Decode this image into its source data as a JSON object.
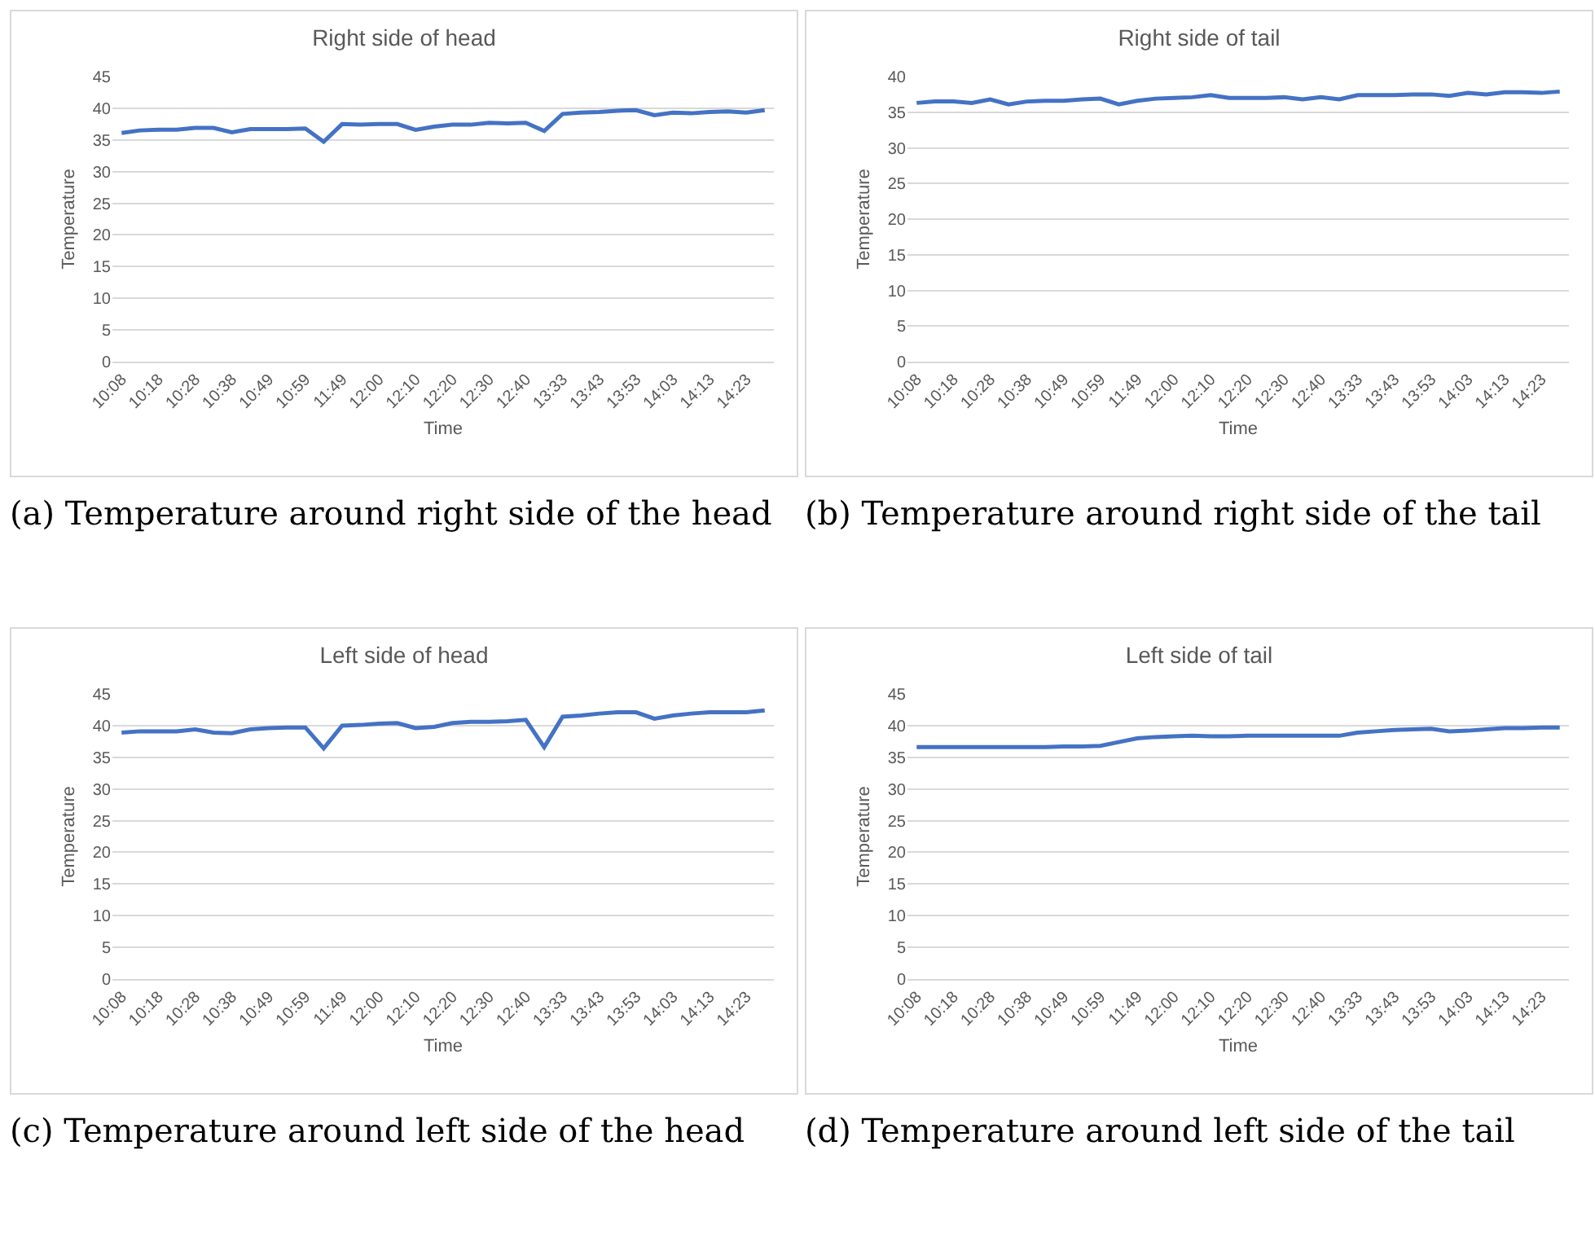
{
  "chart_data": [
    {
      "type": "line",
      "title": "Right side of head",
      "xlabel": "Time",
      "ylabel": "Temperature",
      "categories": [
        "10:08",
        null,
        "10:18",
        null,
        "10:28",
        null,
        "10:38",
        null,
        "10:49",
        null,
        "10:59",
        null,
        "11:49",
        null,
        "12:00",
        null,
        "12:10",
        null,
        "12:20",
        null,
        "12:30",
        null,
        "12:40",
        null,
        "13:33",
        null,
        "13:43",
        null,
        "13:53",
        null,
        "14:03",
        null,
        "14:13",
        null,
        "14:23",
        null
      ],
      "series": [
        {
          "color": "#4472c4",
          "values": [
            36.1,
            36.5,
            36.6,
            36.6,
            36.9,
            36.9,
            36.2,
            36.7,
            36.7,
            36.7,
            36.8,
            34.7,
            37.5,
            37.4,
            37.5,
            37.5,
            36.6,
            37.1,
            37.4,
            37.4,
            37.7,
            37.6,
            37.7,
            36.4,
            39.1,
            39.3,
            39.4,
            39.6,
            39.7,
            38.9,
            39.3,
            39.2,
            39.4,
            39.5,
            39.3,
            39.7
          ]
        }
      ],
      "ylim": [
        0,
        45
      ],
      "yticks": [
        0,
        5,
        10,
        15,
        20,
        25,
        30,
        35,
        40,
        45
      ],
      "grid": "y",
      "marker": "none",
      "line_style": "solid",
      "annotations": [
        "(a) Temperature around right side of the head"
      ]
    },
    {
      "type": "line",
      "title": "Right side of tail",
      "xlabel": "Time",
      "ylabel": "Temperature",
      "categories": [
        "10:08",
        null,
        "10:18",
        null,
        "10:28",
        null,
        "10:38",
        null,
        "10:49",
        null,
        "10:59",
        null,
        "11:49",
        null,
        "12:00",
        null,
        "12:10",
        null,
        "12:20",
        null,
        "12:30",
        null,
        "12:40",
        null,
        "13:33",
        null,
        "13:43",
        null,
        "13:53",
        null,
        "14:03",
        null,
        "14:13",
        null,
        "14:23",
        null
      ],
      "series": [
        {
          "color": "#4472c4",
          "values": [
            36.3,
            36.5,
            36.5,
            36.3,
            36.8,
            36.1,
            36.5,
            36.6,
            36.6,
            36.8,
            36.9,
            36.1,
            36.6,
            36.9,
            37.0,
            37.1,
            37.4,
            37.0,
            37.0,
            37.0,
            37.1,
            36.8,
            37.1,
            36.8,
            37.4,
            37.4,
            37.4,
            37.5,
            37.5,
            37.3,
            37.7,
            37.5,
            37.8,
            37.8,
            37.7,
            37.9
          ]
        }
      ],
      "ylim": [
        0,
        40
      ],
      "yticks": [
        0,
        5,
        10,
        15,
        20,
        25,
        30,
        35,
        40
      ],
      "grid": "y",
      "marker": "none",
      "line_style": "solid",
      "annotations": [
        "(b) Temperature around right side of the tail"
      ]
    },
    {
      "type": "line",
      "title": "Left side of head",
      "xlabel": "Time",
      "ylabel": "Temperature",
      "categories": [
        "10:08",
        null,
        "10:18",
        null,
        "10:28",
        null,
        "10:38",
        null,
        "10:49",
        null,
        "10:59",
        null,
        "11:49",
        null,
        "12:00",
        null,
        "12:10",
        null,
        "12:20",
        null,
        "12:30",
        null,
        "12:40",
        null,
        "13:33",
        null,
        "13:43",
        null,
        "13:53",
        null,
        "14:03",
        null,
        "14:13",
        null,
        "14:23",
        null
      ],
      "series": [
        {
          "color": "#4472c4",
          "values": [
            38.9,
            39.1,
            39.1,
            39.1,
            39.4,
            38.9,
            38.8,
            39.4,
            39.6,
            39.7,
            39.7,
            36.4,
            40.0,
            40.1,
            40.3,
            40.4,
            39.6,
            39.8,
            40.4,
            40.6,
            40.6,
            40.7,
            40.9,
            36.6,
            41.4,
            41.6,
            41.9,
            42.1,
            42.1,
            41.1,
            41.6,
            41.9,
            42.1,
            42.1,
            42.1,
            42.4
          ]
        }
      ],
      "ylim": [
        0,
        45
      ],
      "yticks": [
        0,
        5,
        10,
        15,
        20,
        25,
        30,
        35,
        40,
        45
      ],
      "grid": "y",
      "marker": "none",
      "line_style": "solid",
      "annotations": [
        "(c) Temperature around left side of the head"
      ]
    },
    {
      "type": "line",
      "title": "Left side of tail",
      "xlabel": "Time",
      "ylabel": "Temperature",
      "categories": [
        "10:08",
        null,
        "10:18",
        null,
        "10:28",
        null,
        "10:38",
        null,
        "10:49",
        null,
        "10:59",
        null,
        "11:49",
        null,
        "12:00",
        null,
        "12:10",
        null,
        "12:20",
        null,
        "12:30",
        null,
        "12:40",
        null,
        "13:33",
        null,
        "13:43",
        null,
        "13:53",
        null,
        "14:03",
        null,
        "14:13",
        null,
        "14:23",
        null
      ],
      "series": [
        {
          "color": "#4472c4",
          "values": [
            36.6,
            36.6,
            36.6,
            36.6,
            36.6,
            36.6,
            36.6,
            36.6,
            36.7,
            36.7,
            36.8,
            37.4,
            38.0,
            38.2,
            38.3,
            38.4,
            38.3,
            38.3,
            38.4,
            38.4,
            38.4,
            38.4,
            38.4,
            38.4,
            38.9,
            39.1,
            39.3,
            39.4,
            39.5,
            39.1,
            39.2,
            39.4,
            39.6,
            39.6,
            39.7,
            39.7
          ]
        }
      ],
      "ylim": [
        0,
        45
      ],
      "yticks": [
        0,
        5,
        10,
        15,
        20,
        25,
        30,
        35,
        40,
        45
      ],
      "grid": "y",
      "marker": "none",
      "line_style": "solid",
      "annotations": [
        "(d) Temperature around left side of the tail"
      ]
    }
  ]
}
